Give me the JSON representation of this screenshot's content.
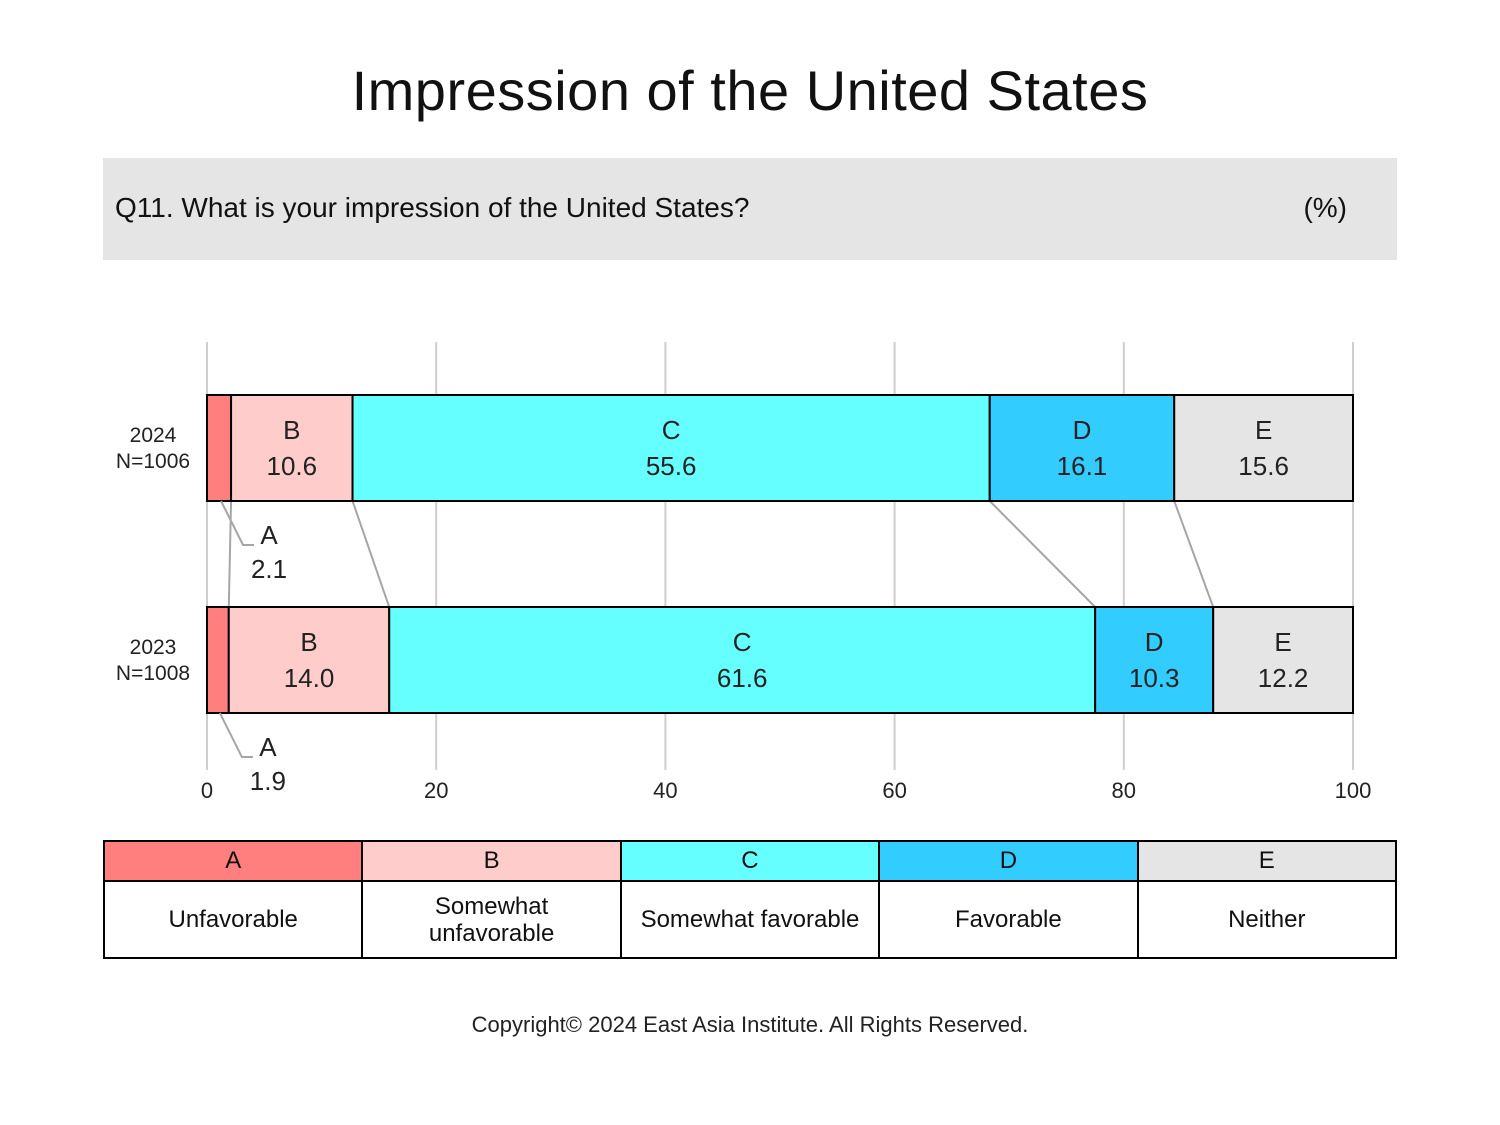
{
  "title": "Impression of the United States",
  "question": {
    "text": "Q11. What is your impression of the United States?",
    "unit": "(%)"
  },
  "chart_data": {
    "type": "bar",
    "orientation": "horizontal-stacked",
    "xlim": [
      0,
      100
    ],
    "xticks": [
      "0",
      "20",
      "40",
      "60",
      "80",
      "100"
    ],
    "grid": true,
    "categories": [
      "A",
      "B",
      "C",
      "D",
      "E"
    ],
    "rows": [
      {
        "year": "2024",
        "n": "N=1006",
        "values": [
          2.1,
          10.6,
          55.6,
          16.1,
          15.6
        ],
        "labels": [
          "2.1",
          "10.6",
          "55.6",
          "16.1",
          "15.6"
        ]
      },
      {
        "year": "2023",
        "n": "N=1008",
        "values": [
          1.9,
          14.0,
          61.6,
          10.3,
          12.2
        ],
        "labels": [
          "1.9",
          "14.0",
          "61.6",
          "10.3",
          "12.2"
        ]
      }
    ],
    "colors": [
      "#ff7f7f",
      "#ffcccc",
      "#66ffff",
      "#33ccff",
      "#e6e5e6"
    ]
  },
  "legend": [
    {
      "key": "A",
      "label": "Unfavorable"
    },
    {
      "key": "B",
      "label": "Somewhat unfavorable"
    },
    {
      "key": "C",
      "label": "Somewhat favorable"
    },
    {
      "key": "D",
      "label": "Favorable"
    },
    {
      "key": "E",
      "label": "Neither"
    }
  ],
  "copyright": "Copyright© 2024 East Asia Institute. All Rights Reserved."
}
